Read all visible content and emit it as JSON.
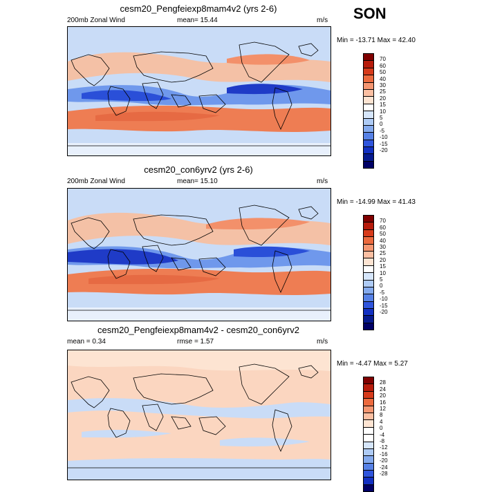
{
  "season": "SON",
  "panels": [
    {
      "title": "cesm20_Pengfeiexp8mam4v2 (yrs 2-6)",
      "left_label": "200mb Zonal Wind",
      "mean_text": "mean=  15.44",
      "units": "m/s",
      "minmax": "Min = -13.71 Max =  42.40",
      "map_kind": "zonal-wind-field-exp"
    },
    {
      "title": "cesm20_con6yrv2 (yrs 2-6)",
      "left_label": "200mb Zonal Wind",
      "mean_text": "mean=  15.10",
      "units": "m/s",
      "minmax": "Min = -14.99 Max =  41.43",
      "map_kind": "zonal-wind-field-control"
    },
    {
      "title": "cesm20_Pengfeiexp8mam4v2 - cesm20_con6yrv2",
      "left_label": "mean =   0.34",
      "mean_text": "rmse =   1.57",
      "units": "m/s",
      "minmax": "Min =  -4.47 Max =   5.27",
      "map_kind": "difference-field"
    }
  ],
  "colorbars": [
    {
      "labels": [
        "70",
        "60",
        "50",
        "40",
        "30",
        "25",
        "20",
        "15",
        "10",
        "5",
        "0",
        "-5",
        "-10",
        "-15",
        "-20"
      ],
      "colors": [
        "#800000",
        "#b71b0b",
        "#d73b1b",
        "#ec6a3e",
        "#f59671",
        "#fbbfa2",
        "#fde4d2",
        "#ffffff",
        "#d6e6fb",
        "#aecbf5",
        "#84aaee",
        "#5681e6",
        "#2f55dd",
        "#1230c2",
        "#061a8f",
        "#000066"
      ]
    },
    {
      "labels": [
        "70",
        "60",
        "50",
        "40",
        "30",
        "25",
        "20",
        "15",
        "10",
        "5",
        "0",
        "-5",
        "-10",
        "-15",
        "-20"
      ],
      "colors": [
        "#800000",
        "#b71b0b",
        "#d73b1b",
        "#ec6a3e",
        "#f59671",
        "#fbbfa2",
        "#fde4d2",
        "#ffffff",
        "#d6e6fb",
        "#aecbf5",
        "#84aaee",
        "#5681e6",
        "#2f55dd",
        "#1230c2",
        "#061a8f",
        "#000066"
      ]
    },
    {
      "labels": [
        "28",
        "24",
        "20",
        "16",
        "12",
        "8",
        "4",
        "0",
        "-4",
        "-8",
        "-12",
        "-16",
        "-20",
        "-24",
        "-28"
      ],
      "colors": [
        "#800000",
        "#b71b0b",
        "#d73b1b",
        "#ec6a3e",
        "#f59671",
        "#fbbfa2",
        "#fde4d2",
        "#ffffff",
        "#ffffff",
        "#d6e6fb",
        "#aecbf5",
        "#84aaee",
        "#5681e6",
        "#2f55dd",
        "#1230c2",
        "#000066"
      ]
    }
  ],
  "colors": {
    "light_red": "#fbd6c0",
    "mid_red": "#f3906a",
    "strong_red": "#e66a43",
    "light_blue": "#c9dcf7",
    "mid_blue": "#6f98ec",
    "strong_blue": "#2a4fd8",
    "very_strong_blue": "#1f3bc7",
    "white": "#ffffff"
  }
}
